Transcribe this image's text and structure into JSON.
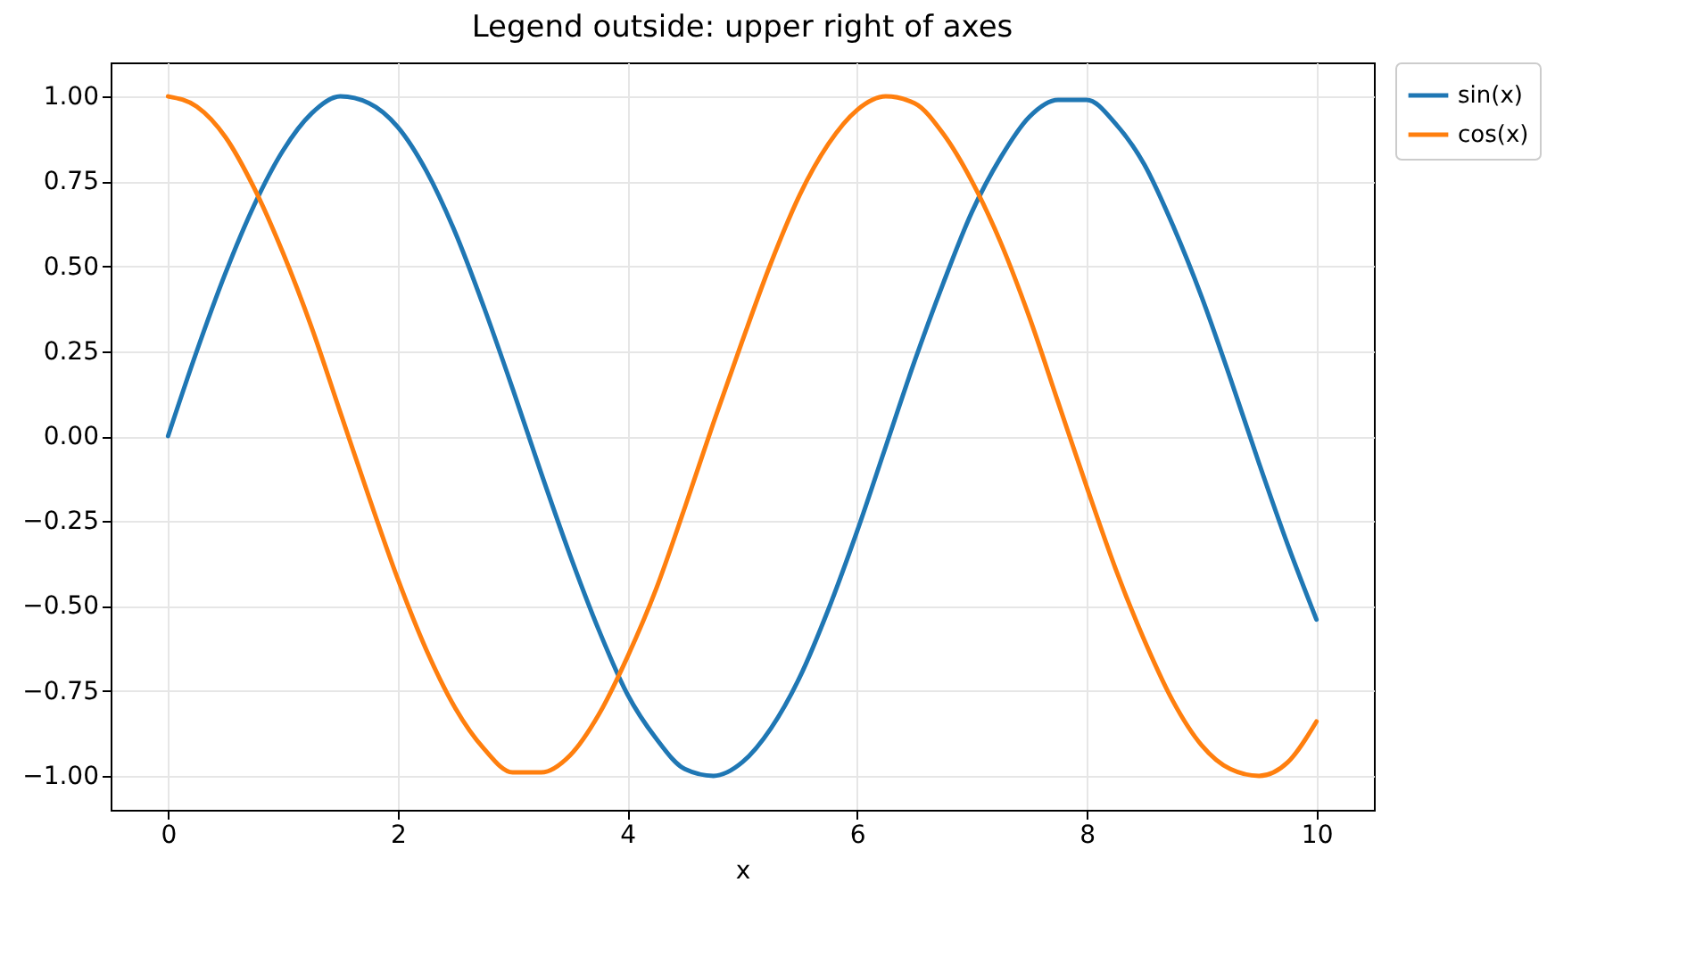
{
  "chart_data": {
    "type": "line",
    "title": "Legend outside: upper right of axes",
    "xlabel": "x",
    "x": [
      0,
      0.25,
      0.5,
      0.75,
      1,
      1.25,
      1.5,
      1.75,
      2,
      2.25,
      2.5,
      2.75,
      3,
      3.25,
      3.5,
      3.75,
      4,
      4.25,
      4.5,
      4.75,
      5,
      5.25,
      5.5,
      5.75,
      6,
      6.25,
      6.5,
      6.75,
      7,
      7.25,
      7.5,
      7.75,
      8,
      8.25,
      8.5,
      8.75,
      9,
      9.25,
      9.5,
      9.75,
      10
    ],
    "series": [
      {
        "name": "sin(x)",
        "color": "#1f77b4",
        "values": [
          0,
          0.25,
          0.48,
          0.68,
          0.84,
          0.95,
          1.0,
          0.98,
          0.91,
          0.78,
          0.6,
          0.38,
          0.14,
          -0.11,
          -0.35,
          -0.57,
          -0.76,
          -0.89,
          -0.98,
          -1.0,
          -0.96,
          -0.86,
          -0.71,
          -0.51,
          -0.28,
          -0.03,
          0.22,
          0.45,
          0.66,
          0.82,
          0.94,
          0.99,
          0.99,
          0.92,
          0.8,
          0.62,
          0.41,
          0.17,
          -0.08,
          -0.32,
          -0.54
        ]
      },
      {
        "name": "cos(x)",
        "color": "#ff7f0e",
        "values": [
          1,
          0.97,
          0.88,
          0.73,
          0.54,
          0.32,
          0.07,
          -0.18,
          -0.42,
          -0.63,
          -0.8,
          -0.92,
          -0.99,
          -0.99,
          -0.94,
          -0.82,
          -0.65,
          -0.45,
          -0.21,
          0.04,
          0.28,
          0.51,
          0.71,
          0.86,
          0.96,
          1.0,
          0.98,
          0.89,
          0.75,
          0.57,
          0.35,
          0.1,
          -0.15,
          -0.39,
          -0.6,
          -0.78,
          -0.91,
          -0.98,
          -1.0,
          -0.96,
          -0.84
        ]
      }
    ],
    "xlim": [
      -0.5,
      10.5
    ],
    "xticks": [
      0,
      2,
      4,
      6,
      8,
      10
    ],
    "ylim": [
      -1.1,
      1.1
    ],
    "yticks": [
      {
        "value": -1,
        "label": "−1.00"
      },
      {
        "value": -0.75,
        "label": "−0.75"
      },
      {
        "value": -0.5,
        "label": "−0.50"
      },
      {
        "value": -0.25,
        "label": "−0.25"
      },
      {
        "value": 0,
        "label": "0.00"
      },
      {
        "value": 0.25,
        "label": "0.25"
      },
      {
        "value": 0.5,
        "label": "0.50"
      },
      {
        "value": 0.75,
        "label": "0.75"
      },
      {
        "value": 1,
        "label": "1.00"
      }
    ],
    "grid": true,
    "legend": "top right",
    "line_style": "solid"
  }
}
